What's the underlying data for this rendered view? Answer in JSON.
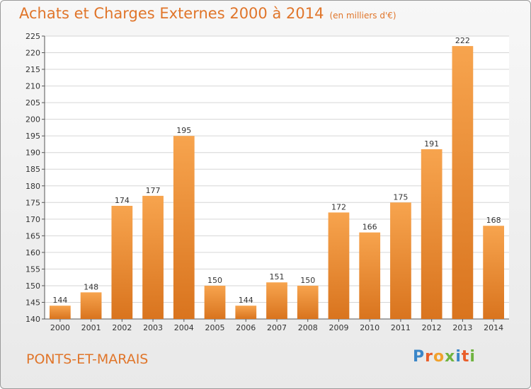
{
  "header": {
    "title": "Achats et Charges Externes 2000 à 2014",
    "subtitle": "(en milliers d'€)"
  },
  "footer": {
    "place": "PONTS-ET-MARAIS",
    "logo": [
      "P",
      "r",
      "o",
      "x",
      "i",
      "t",
      "i"
    ]
  },
  "chart_data": {
    "type": "bar",
    "title": "Achats et Charges Externes 2000 à 2014",
    "subtitle": "(en milliers d'€)",
    "xlabel": "",
    "ylabel": "",
    "categories": [
      "2000",
      "2001",
      "2002",
      "2003",
      "2004",
      "2005",
      "2006",
      "2007",
      "2008",
      "2009",
      "2010",
      "2011",
      "2012",
      "2013",
      "2014"
    ],
    "values": [
      144,
      148,
      174,
      177,
      195,
      150,
      144,
      151,
      150,
      172,
      166,
      175,
      191,
      222,
      168
    ],
    "ylim": [
      140,
      225
    ],
    "yticks": [
      140,
      145,
      150,
      155,
      160,
      165,
      170,
      175,
      180,
      185,
      190,
      195,
      200,
      205,
      210,
      215,
      220,
      225
    ],
    "grid": true,
    "bar_color_light": "#f7a44e",
    "bar_color_dark": "#d9741e",
    "grid_color": "#d6d6d6"
  }
}
